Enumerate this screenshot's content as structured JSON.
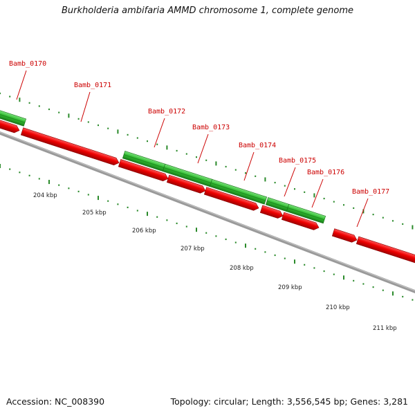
{
  "title": "Burkholderia ambifaria AMMD chromosome 1, complete genome",
  "footer": {
    "accession": "Accession: NC_008390",
    "topology": "Topology: circular; Length: 3,556,545 bp; Genes: 3,281"
  },
  "colors": {
    "forward_gene": "#2db82d",
    "reverse_gene": "#e60000",
    "backbone": "#8c8c8c",
    "tick": "#2a8a2a",
    "gene_label": "#cc0000"
  },
  "gene_labels": [
    "Bamb_0170",
    "Bamb_0171",
    "Bamb_0172",
    "Bamb_0173",
    "Bamb_0174",
    "Bamb_0175",
    "Bamb_0176",
    "Bamb_0177"
  ],
  "scale_labels": [
    "204 kbp",
    "205 kbp",
    "206 kbp",
    "207 kbp",
    "208 kbp",
    "209 kbp",
    "210 kbp",
    "211 kbp"
  ]
}
